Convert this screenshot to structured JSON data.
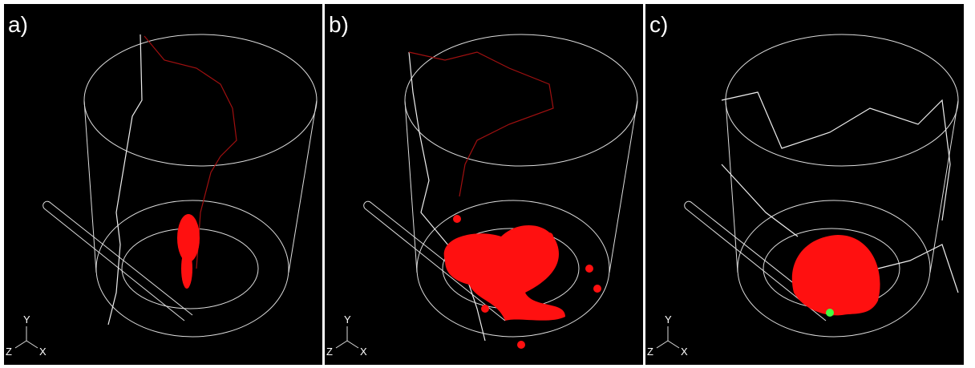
{
  "panels": [
    {
      "label": "a)",
      "axes": {
        "y": "Y",
        "z": "Z",
        "x": "X"
      }
    },
    {
      "label": "b)",
      "axes": {
        "y": "Y",
        "z": "Z",
        "x": "X"
      }
    },
    {
      "label": "c)",
      "axes": {
        "y": "Y",
        "z": "Z",
        "x": "X"
      }
    }
  ]
}
